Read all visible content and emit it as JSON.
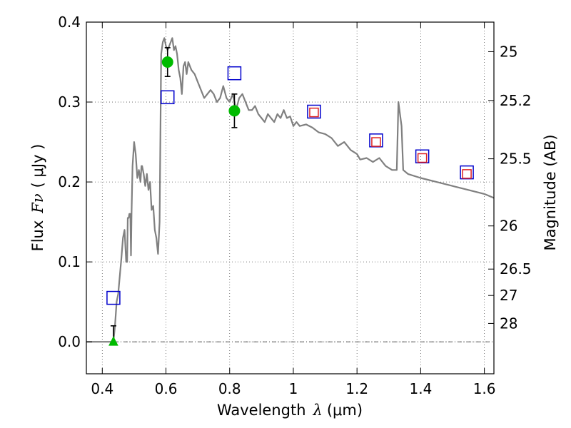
{
  "chart_data": {
    "type": "line",
    "title": "",
    "xlabel_text": "Wavelength",
    "xlabel_symbol": "λ",
    "xlabel_unit": "(μm)",
    "ylabel_text": "Flux",
    "ylabel_symbol": "Fν",
    "ylabel_unit": "( μJy )",
    "y2label": "Magnitude (AB)",
    "xlim": [
      0.35,
      1.63
    ],
    "ylim": [
      -0.04,
      0.4
    ],
    "grid": true,
    "x_ticks": [
      0.4,
      0.6,
      0.8,
      1.0,
      1.2,
      1.4,
      1.6
    ],
    "x_tick_labels": [
      "0.4",
      "0.6",
      "0.8",
      "1",
      "1.2",
      "1.4",
      "1.6"
    ],
    "y_ticks": [
      0.0,
      0.1,
      0.2,
      0.3,
      0.4
    ],
    "y_tick_labels": [
      "0.0",
      "0.1",
      "0.2",
      "0.3",
      "0.4"
    ],
    "y2_ticks": [
      {
        "label": "25",
        "flux": 0.363
      },
      {
        "label": "25.2",
        "flux": 0.302
      },
      {
        "label": "25.5",
        "flux": 0.229
      },
      {
        "label": "26",
        "flux": 0.145
      },
      {
        "label": "26.5",
        "flux": 0.091
      },
      {
        "label": "27",
        "flux": 0.058
      },
      {
        "label": "28",
        "flux": 0.023
      }
    ],
    "reference_line": {
      "y": 0.0,
      "style": "dash-dot"
    },
    "series": [
      {
        "name": "SED model",
        "kind": "line",
        "color": "#808080",
        "x": [
          0.35,
          0.43,
          0.435,
          0.44,
          0.445,
          0.45,
          0.46,
          0.465,
          0.47,
          0.475,
          0.478,
          0.48,
          0.483,
          0.485,
          0.488,
          0.49,
          0.492,
          0.495,
          0.5,
          0.505,
          0.51,
          0.515,
          0.52,
          0.523,
          0.525,
          0.53,
          0.535,
          0.54,
          0.545,
          0.55,
          0.555,
          0.56,
          0.565,
          0.57,
          0.575,
          0.58,
          0.585,
          0.59,
          0.595,
          0.6,
          0.605,
          0.61,
          0.615,
          0.62,
          0.625,
          0.63,
          0.635,
          0.64,
          0.645,
          0.65,
          0.655,
          0.66,
          0.665,
          0.67,
          0.68,
          0.69,
          0.7,
          0.72,
          0.74,
          0.75,
          0.76,
          0.77,
          0.78,
          0.79,
          0.8,
          0.81,
          0.82,
          0.83,
          0.84,
          0.85,
          0.86,
          0.87,
          0.88,
          0.89,
          0.9,
          0.91,
          0.92,
          0.93,
          0.94,
          0.95,
          0.96,
          0.97,
          0.98,
          0.99,
          1.0,
          1.01,
          1.02,
          1.04,
          1.06,
          1.08,
          1.1,
          1.12,
          1.14,
          1.16,
          1.18,
          1.2,
          1.21,
          1.23,
          1.25,
          1.27,
          1.29,
          1.31,
          1.325,
          1.33,
          1.34,
          1.345,
          1.36,
          1.4,
          1.45,
          1.5,
          1.55,
          1.6,
          1.63
        ],
        "y": [
          0.0,
          0.0,
          0.0,
          0.02,
          0.05,
          0.06,
          0.105,
          0.13,
          0.14,
          0.1,
          0.1,
          0.155,
          0.155,
          0.16,
          0.16,
          0.108,
          0.16,
          0.22,
          0.25,
          0.235,
          0.205,
          0.215,
          0.2,
          0.22,
          0.22,
          0.21,
          0.195,
          0.21,
          0.19,
          0.2,
          0.165,
          0.17,
          0.14,
          0.13,
          0.11,
          0.15,
          0.36,
          0.375,
          0.38,
          0.37,
          0.365,
          0.37,
          0.375,
          0.38,
          0.365,
          0.37,
          0.36,
          0.34,
          0.33,
          0.31,
          0.345,
          0.35,
          0.335,
          0.35,
          0.34,
          0.335,
          0.325,
          0.305,
          0.315,
          0.31,
          0.3,
          0.305,
          0.32,
          0.305,
          0.3,
          0.31,
          0.29,
          0.305,
          0.31,
          0.3,
          0.29,
          0.29,
          0.295,
          0.285,
          0.28,
          0.275,
          0.285,
          0.28,
          0.275,
          0.285,
          0.28,
          0.29,
          0.28,
          0.282,
          0.27,
          0.275,
          0.27,
          0.272,
          0.268,
          0.262,
          0.26,
          0.255,
          0.245,
          0.25,
          0.24,
          0.235,
          0.228,
          0.23,
          0.225,
          0.23,
          0.22,
          0.215,
          0.215,
          0.3,
          0.27,
          0.215,
          0.21,
          0.205,
          0.2,
          0.195,
          0.19,
          0.185,
          0.18
        ]
      },
      {
        "name": "blue squares",
        "kind": "square",
        "color": "#0000cc",
        "x": [
          0.435,
          0.605,
          0.815,
          1.065,
          1.26,
          1.405,
          1.545
        ],
        "y": [
          0.055,
          0.306,
          0.336,
          0.288,
          0.252,
          0.232,
          0.212
        ]
      },
      {
        "name": "red squares",
        "kind": "square",
        "color": "#dd2222",
        "x": [
          1.065,
          1.26,
          1.405,
          1.545
        ],
        "y": [
          0.287,
          0.25,
          0.23,
          0.21
        ]
      },
      {
        "name": "green points",
        "kind": "circle",
        "color": "#00bb00",
        "x": [
          0.605,
          0.815
        ],
        "y": [
          0.35,
          0.289
        ],
        "yerr": [
          0.018,
          0.021
        ]
      },
      {
        "name": "green limit",
        "kind": "triangle",
        "color": "#00bb00",
        "x": [
          0.435
        ],
        "y": [
          0.0
        ],
        "errhi": [
          0.02
        ]
      }
    ]
  }
}
